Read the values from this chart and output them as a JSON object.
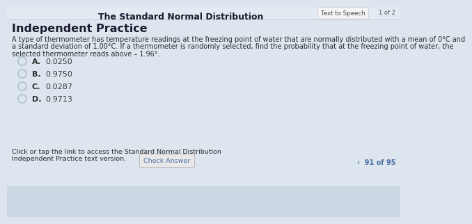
{
  "title": "The Standard Normal Distribution",
  "top_right_text": "Text to Speech",
  "page_indicator": "1 of 2",
  "heading": "Independent Practice",
  "question_line1": "A type of thermometer has temperature readings at the freezing point of water that are normally distributed with a mean of 0°C and",
  "question_line2": "a standard deviation of 1.00°C. If a thermometer is randomly selected, find the probability that at the freezing point of water, the",
  "question_line3": "selected thermometer reads above – 1.96°.",
  "options": [
    {
      "label": "A.",
      "value": "0.0250"
    },
    {
      "label": "B.",
      "value": "0.9750"
    },
    {
      "label": "C.",
      "value": "0.0287"
    },
    {
      "label": "D.",
      "value": "0.9713"
    }
  ],
  "footer_line1": "Click or tap the link to access the Standard Normal Distribution",
  "footer_line2": "Independent Practice text version.",
  "check_answer_btn": "Check Answer",
  "nav_text": "‹  91 of 95",
  "bg_top_color": "#dde6ef",
  "bg_mid_color": "#ccd9e4",
  "bg_bottom_color": "#c0d0de",
  "title_color": "#1a1a2e",
  "heading_color": "#1a1a2e",
  "question_color": "#2c2c2c",
  "option_label_color": "#2c2c2c",
  "option_value_color": "#3a3a3a",
  "footer_color": "#2c2c2c",
  "btn_bg": "#e8e8e8",
  "btn_color": "#4a6fa5",
  "btn_border": "#bbbbbb",
  "nav_color": "#4a6fa5",
  "circle_edge_color": "#b0bece",
  "tts_btn_bg": "#f5f5f5",
  "tts_btn_border": "#cccccc",
  "tts_btn_color": "#444444",
  "page_ind_color": "#555555",
  "header_line_color": "#c0c8d0"
}
